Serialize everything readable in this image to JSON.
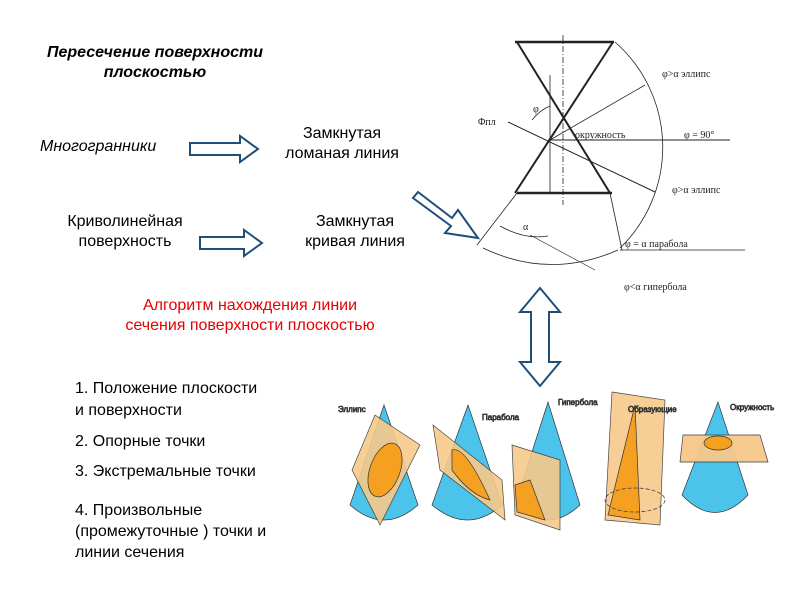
{
  "title": {
    "line1": "Пересечение поверхности",
    "line2": "плоскостью"
  },
  "rows": [
    {
      "source": "Многогранники",
      "result_line1": "Замкнутая",
      "result_line2": "ломаная линия"
    },
    {
      "source_line1": "Криволинейная",
      "source_line2": "поверхность",
      "result_line1": "Замкнутая",
      "result_line2": "кривая линия"
    }
  ],
  "algorithm": {
    "line1": "Алгоритм нахождения линии",
    "line2": "сечения поверхности плоскостью"
  },
  "steps": [
    {
      "line1": "1. Положение плоскости",
      "line2": "и поверхности"
    },
    {
      "line1": "2. Опорные точки"
    },
    {
      "line1": "3. Экстремальные точки"
    },
    {
      "line1": "4. Произвольные",
      "line2": "(промежуточные ) точки и",
      "line3": "линии сечения"
    }
  ],
  "cone_diagram": {
    "plane_label": "Φпл",
    "phi": "φ",
    "alpha": "α",
    "labels": [
      "φ>α эллипс",
      "окружность",
      "φ = 90°",
      "φ>α эллипс",
      "φ = α парабола",
      "φ<α гипербола"
    ]
  },
  "section_examples": [
    "Эллипс",
    "Парабола",
    "Гипербола",
    "Образующие",
    "Окружность"
  ],
  "colors": {
    "arrow": "#1f4e79",
    "accent_red": "#e60000",
    "cone": "#4cc3ea",
    "plane": "#f7c98a",
    "section": "#f5a020"
  }
}
